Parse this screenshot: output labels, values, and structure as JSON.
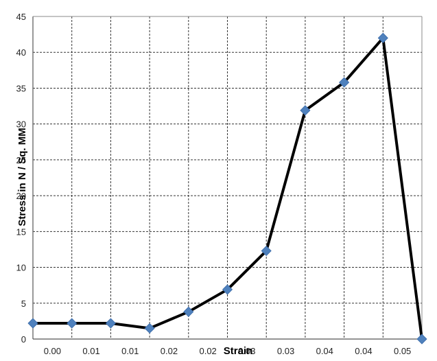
{
  "chart_data": {
    "type": "line",
    "title": "",
    "xlabel": "Strain",
    "ylabel": "Stress in N / Sq. MM",
    "xlim": [
      0.0,
      0.05
    ],
    "ylim": [
      0,
      45
    ],
    "grid": true,
    "legend": "none",
    "x_ticks": [
      "0.00",
      "0.01",
      "0.01",
      "0.02",
      "0.02",
      "0.03",
      "0.03",
      "0.04",
      "0.04",
      "0.05"
    ],
    "y_ticks": [
      "0",
      "5",
      "10",
      "15",
      "20",
      "25",
      "30",
      "35",
      "40",
      "45"
    ],
    "series": [
      {
        "x": [
          0.0,
          0.005,
          0.01,
          0.015,
          0.02,
          0.025,
          0.03,
          0.035,
          0.04,
          0.045,
          0.05
        ],
        "y": [
          2.2,
          2.2,
          2.2,
          1.5,
          3.8,
          6.9,
          12.3,
          31.9,
          35.8,
          42.0,
          0.0
        ]
      }
    ],
    "colors": {
      "line": "#000000",
      "marker": "#4f81bd",
      "grid": "#333333"
    }
  }
}
